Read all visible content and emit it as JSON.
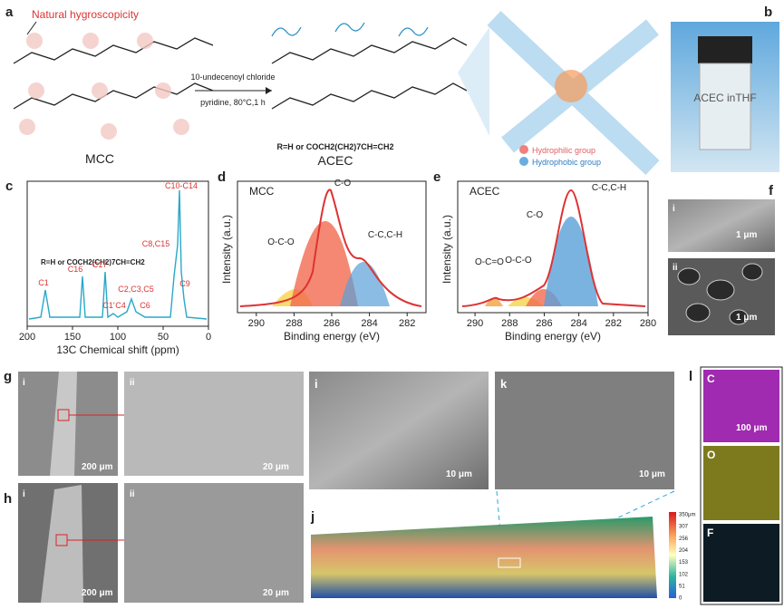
{
  "panel_a": {
    "label": "a",
    "annotation": "Natural hygroscopicity",
    "reagent": "10-undecenoyl chloride",
    "conditions": "pyridine, 80°C,1 h",
    "left_name": "MCC",
    "right_name": "ACEC",
    "formula": "R=H or COCH2(CH2)7CH=CH2",
    "legend": [
      "Hydrophilic group",
      "Hydrophobic group"
    ]
  },
  "panel_b": {
    "label": "b",
    "vial_text": "ACEC inTHF"
  },
  "panel_c": {
    "label": "c",
    "formula": "R=H or COCH2(CH2)7CH=CH2",
    "peaks": [
      "C1",
      "C16",
      "C17",
      "C1'",
      "C4",
      "C2,C3,C5",
      "C6",
      "C8,C15",
      "C10-C14",
      "C9"
    ],
    "xlabel": "13C Chemical shift (ppm)",
    "xlim": [
      200,
      0
    ],
    "xticks": [
      200,
      150,
      100,
      50,
      0
    ]
  },
  "panel_d": {
    "label": "d",
    "sample": "MCC",
    "ylabel": "Intensity (a.u.)",
    "xlabel": "Binding energy (eV)",
    "xlim": [
      291,
      281
    ],
    "xticks": [
      290,
      288,
      286,
      284,
      282
    ],
    "peaks": [
      "C-O",
      "O-C-O",
      "C-C,C-H"
    ]
  },
  "panel_e": {
    "label": "e",
    "sample": "ACEC",
    "ylabel": "Intensity (a.u.)",
    "xlabel": "Binding energy (eV)",
    "xlim": [
      291,
      280
    ],
    "xticks": [
      290,
      288,
      286,
      284,
      282,
      280
    ],
    "peaks": [
      "C-O",
      "O-C-O",
      "O-C=O",
      "C-C,C-H"
    ]
  },
  "panel_f": {
    "label": "f",
    "sub": [
      "i",
      "ii"
    ],
    "scales": [
      "1 μm",
      "1 μm"
    ]
  },
  "panel_g": {
    "label": "g",
    "sub": [
      "i",
      "ii"
    ],
    "scales": [
      "200 μm",
      "20 μm"
    ]
  },
  "panel_h": {
    "label": "h",
    "sub": [
      "i",
      "ii"
    ],
    "scales": [
      "200 μm",
      "20 μm"
    ]
  },
  "panel_i": {
    "label": "i",
    "scale": "10 μm"
  },
  "panel_k": {
    "label": "k",
    "scale": "10 μm"
  },
  "panel_j": {
    "label": "j",
    "colorbar": [
      "350μm",
      "307",
      "256",
      "204",
      "153",
      "102",
      "51",
      "0"
    ]
  },
  "panel_l": {
    "label": "l",
    "elements": [
      "C",
      "O",
      "F"
    ],
    "scale": "100 μm"
  }
}
